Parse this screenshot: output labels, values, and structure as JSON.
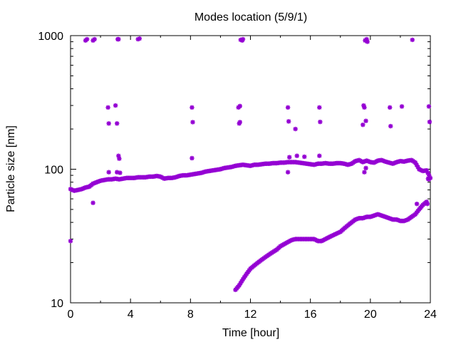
{
  "chart_data": {
    "type": "scatter",
    "title": "Modes location (5/9/1)",
    "xlabel": "Time [hour]",
    "ylabel": "Particle size [nm]",
    "xlim": [
      0,
      24
    ],
    "ylim": [
      10,
      1000
    ],
    "y_scale": "log",
    "grid": false,
    "legend": "none",
    "marker_color": "#9400d3",
    "x_ticks": [
      0,
      4,
      8,
      12,
      16,
      20,
      24
    ],
    "x_tick_labels": [
      "0",
      "4",
      "8",
      "12",
      "16",
      "20",
      "24"
    ],
    "y_ticks": [
      10,
      100,
      1000
    ],
    "y_tick_labels": [
      "10",
      "100",
      "1000"
    ],
    "series": [
      {
        "mode": "main",
        "x": [
          0.0,
          0.25,
          0.5,
          0.75,
          1.0,
          1.25,
          1.5,
          1.75,
          2.0,
          2.25,
          2.5,
          2.75,
          3.0,
          3.25,
          3.5,
          3.75,
          4.0,
          4.25,
          4.5,
          4.75,
          5.0,
          5.25,
          5.5,
          5.75,
          6.0,
          6.25,
          6.5,
          6.75,
          7.0,
          7.25,
          7.5,
          7.75,
          8.0,
          8.25,
          8.5,
          8.75,
          9.0,
          9.25,
          9.5,
          9.75,
          10.0,
          10.25,
          10.5,
          10.75,
          11.0,
          11.25,
          11.5,
          11.75,
          12.0,
          12.25,
          12.5,
          12.75,
          13.0,
          13.25,
          13.5,
          13.75,
          14.0,
          14.25,
          14.5,
          14.75,
          15.0,
          15.25,
          15.5,
          15.75,
          16.0,
          16.25,
          16.5,
          16.75,
          17.0,
          17.25,
          17.5,
          17.75,
          18.0,
          18.25,
          18.5,
          18.75,
          19.0,
          19.25,
          19.5,
          19.75,
          20.0,
          20.25,
          20.5,
          20.75,
          21.0,
          21.25,
          21.5,
          21.75,
          22.0,
          22.25,
          22.5,
          22.75,
          23.0,
          23.25,
          23.5,
          23.75,
          24.0
        ],
        "y": [
          71,
          69,
          70,
          71,
          73,
          74,
          78,
          80,
          82,
          83,
          84,
          84,
          85,
          84,
          85,
          86,
          86,
          86,
          87,
          87,
          87,
          88,
          88,
          89,
          88,
          85,
          86,
          86,
          87,
          89,
          90,
          90,
          91,
          92,
          93,
          94,
          96,
          97,
          98,
          99,
          100,
          102,
          103,
          104,
          106,
          107,
          108,
          107,
          106,
          108,
          108,
          109,
          110,
          110,
          111,
          111,
          112,
          112,
          113,
          113,
          113,
          112,
          111,
          110,
          109,
          108,
          110,
          110,
          111,
          110,
          110,
          111,
          111,
          110,
          108,
          110,
          115,
          117,
          113,
          116,
          113,
          112,
          116,
          117,
          114,
          112,
          110,
          113,
          115,
          114,
          116,
          117,
          112,
          100,
          97,
          98,
          86
        ]
      },
      {
        "mode": "growing",
        "x": [
          11.0,
          11.25,
          11.5,
          11.75,
          12.0,
          12.25,
          12.5,
          12.75,
          13.0,
          13.25,
          13.5,
          13.75,
          14.0,
          14.25,
          14.5,
          14.75,
          15.0,
          15.25,
          15.5,
          15.75,
          16.0,
          16.25,
          16.5,
          16.75,
          17.0,
          17.25,
          17.5,
          17.75,
          18.0,
          18.25,
          18.5,
          18.75,
          19.0,
          19.25,
          19.5,
          19.75,
          20.0,
          20.25,
          20.5,
          20.75,
          21.0,
          21.25,
          21.5,
          21.75,
          22.0,
          22.25,
          22.5,
          22.75,
          23.0,
          23.25,
          23.5,
          23.75
        ],
        "y": [
          12.5,
          13.5,
          15,
          16.5,
          18,
          19,
          20,
          21,
          22,
          23,
          24,
          25,
          26.5,
          27.5,
          28.5,
          29.5,
          30,
          30,
          30,
          30,
          30,
          30,
          29,
          29,
          30,
          31,
          32,
          33,
          34,
          36,
          38,
          40,
          42,
          43,
          43,
          44,
          44,
          45,
          46,
          45,
          44,
          43,
          42,
          42,
          41,
          41,
          42,
          44,
          46,
          50,
          54,
          57
        ]
      },
      {
        "mode": "sparse",
        "x": [
          0.0,
          1.0,
          1.1,
          1.5,
          1.6,
          1.5,
          2.5,
          2.55,
          2.55,
          3.0,
          3.1,
          3.15,
          3.2,
          3.25,
          3.1,
          3.2,
          3.3,
          4.5,
          4.6,
          8.1,
          8.15,
          8.1,
          11.2,
          11.3,
          11.35,
          11.25,
          11.3,
          11.45,
          11.5,
          14.5,
          14.55,
          14.6,
          14.5,
          15.0,
          15.1,
          15.6,
          16.6,
          16.65,
          16.6,
          19.5,
          19.55,
          19.6,
          19.7,
          19.65,
          19.75,
          19.8,
          19.6,
          19.7,
          21.3,
          21.35,
          22.1,
          22.8,
          23.9,
          23.95,
          23.9,
          23.85,
          23.1,
          23.8
        ],
        "y": [
          29,
          920,
          940,
          920,
          940,
          56,
          290,
          220,
          95,
          300,
          220,
          940,
          940,
          120,
          95,
          126,
          94,
          940,
          950,
          290,
          225,
          121,
          290,
          225,
          930,
          220,
          297,
          920,
          940,
          290,
          228,
          123,
          95,
          200,
          126,
          124,
          290,
          226,
          126,
          215,
          300,
          290,
          230,
          920,
          940,
          900,
          95,
          102,
          290,
          210,
          295,
          930,
          295,
          226,
          84,
          85,
          55,
          55
        ]
      }
    ]
  }
}
